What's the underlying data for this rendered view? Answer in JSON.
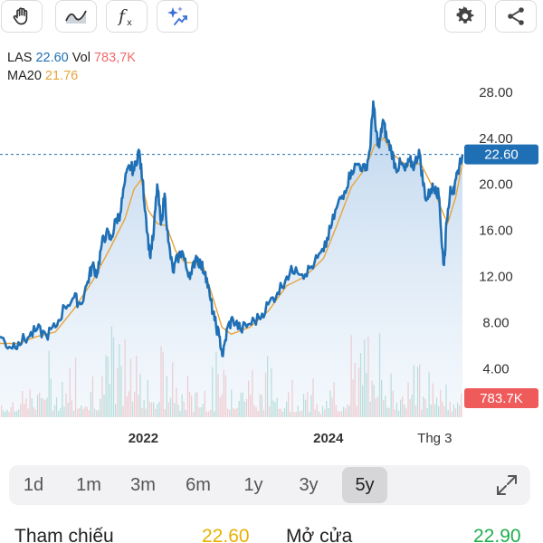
{
  "toolbar": {
    "left_icons": [
      "hand-icon",
      "area-chart-icon",
      "function-icon",
      "ai-sparkle-icon"
    ],
    "right_icons": [
      "gear-icon",
      "share-icon"
    ]
  },
  "legend": {
    "symbol": "LAS",
    "price": "22.60",
    "vol_label": "Vol",
    "vol_value": "783,7K",
    "ma_label": "MA20",
    "ma_value": "21.76",
    "colors": {
      "price": "#1f6fb5",
      "vol": "#ef6b6b",
      "ma": "#e8a43a"
    }
  },
  "chart_data": {
    "type": "line",
    "y_ticks": [
      "28.00",
      "24.00",
      "20.00",
      "16.00",
      "12.00",
      "8.00",
      "4.00"
    ],
    "y_tick_values": [
      28,
      24,
      20,
      16,
      12,
      8,
      4
    ],
    "ylim": [
      -0.2,
      29.4
    ],
    "x_ticks": [
      "2022",
      "2024",
      "Thg 3"
    ],
    "x_tick_positions": [
      0.31,
      0.71,
      0.94
    ],
    "last_price_label": "22.60",
    "last_price": 22.6,
    "volume_label": "783.7K",
    "price_series": [
      {
        "t": 0.0,
        "v": 6.8
      },
      {
        "t": 0.02,
        "v": 5.9
      },
      {
        "t": 0.04,
        "v": 6.3
      },
      {
        "t": 0.06,
        "v": 6.7
      },
      {
        "t": 0.08,
        "v": 7.4
      },
      {
        "t": 0.1,
        "v": 6.9
      },
      {
        "t": 0.12,
        "v": 7.6
      },
      {
        "t": 0.14,
        "v": 9.4
      },
      {
        "t": 0.16,
        "v": 10.2
      },
      {
        "t": 0.175,
        "v": 9.6
      },
      {
        "t": 0.19,
        "v": 11.6
      },
      {
        "t": 0.2,
        "v": 13.0
      },
      {
        "t": 0.21,
        "v": 12.2
      },
      {
        "t": 0.22,
        "v": 14.8
      },
      {
        "t": 0.23,
        "v": 15.8
      },
      {
        "t": 0.24,
        "v": 15.2
      },
      {
        "t": 0.25,
        "v": 16.8
      },
      {
        "t": 0.26,
        "v": 17.5
      },
      {
        "t": 0.27,
        "v": 20.2
      },
      {
        "t": 0.28,
        "v": 21.6
      },
      {
        "t": 0.29,
        "v": 21.2
      },
      {
        "t": 0.3,
        "v": 23.0
      },
      {
        "t": 0.308,
        "v": 20.4
      },
      {
        "t": 0.316,
        "v": 17.0
      },
      {
        "t": 0.324,
        "v": 13.8
      },
      {
        "t": 0.332,
        "v": 15.6
      },
      {
        "t": 0.34,
        "v": 20.0
      },
      {
        "t": 0.348,
        "v": 16.5
      },
      {
        "t": 0.356,
        "v": 19.2
      },
      {
        "t": 0.364,
        "v": 15.0
      },
      {
        "t": 0.374,
        "v": 12.4
      },
      {
        "t": 0.384,
        "v": 13.6
      },
      {
        "t": 0.394,
        "v": 14.2
      },
      {
        "t": 0.404,
        "v": 12.6
      },
      {
        "t": 0.414,
        "v": 12.2
      },
      {
        "t": 0.424,
        "v": 13.8
      },
      {
        "t": 0.434,
        "v": 13.0
      },
      {
        "t": 0.444,
        "v": 12.4
      },
      {
        "t": 0.454,
        "v": 10.2
      },
      {
        "t": 0.464,
        "v": 8.2
      },
      {
        "t": 0.474,
        "v": 6.8
      },
      {
        "t": 0.482,
        "v": 5.1
      },
      {
        "t": 0.492,
        "v": 7.6
      },
      {
        "t": 0.504,
        "v": 8.3
      },
      {
        "t": 0.52,
        "v": 7.4
      },
      {
        "t": 0.54,
        "v": 7.9
      },
      {
        "t": 0.56,
        "v": 8.4
      },
      {
        "t": 0.58,
        "v": 9.6
      },
      {
        "t": 0.6,
        "v": 10.6
      },
      {
        "t": 0.62,
        "v": 12.0
      },
      {
        "t": 0.64,
        "v": 12.8
      },
      {
        "t": 0.66,
        "v": 12.2
      },
      {
        "t": 0.68,
        "v": 13.2
      },
      {
        "t": 0.7,
        "v": 14.2
      },
      {
        "t": 0.715,
        "v": 16.2
      },
      {
        "t": 0.73,
        "v": 18.2
      },
      {
        "t": 0.745,
        "v": 19.4
      },
      {
        "t": 0.76,
        "v": 21.2
      },
      {
        "t": 0.775,
        "v": 21.8
      },
      {
        "t": 0.79,
        "v": 21.2
      },
      {
        "t": 0.8,
        "v": 23.0
      },
      {
        "t": 0.807,
        "v": 27.2
      },
      {
        "t": 0.813,
        "v": 24.6
      },
      {
        "t": 0.82,
        "v": 23.2
      },
      {
        "t": 0.828,
        "v": 25.6
      },
      {
        "t": 0.836,
        "v": 24.0
      },
      {
        "t": 0.846,
        "v": 23.0
      },
      {
        "t": 0.856,
        "v": 21.4
      },
      {
        "t": 0.866,
        "v": 21.8
      },
      {
        "t": 0.876,
        "v": 21.2
      },
      {
        "t": 0.886,
        "v": 22.0
      },
      {
        "t": 0.896,
        "v": 21.6
      },
      {
        "t": 0.906,
        "v": 23.0
      },
      {
        "t": 0.914,
        "v": 20.4
      },
      {
        "t": 0.922,
        "v": 18.6
      },
      {
        "t": 0.932,
        "v": 19.6
      },
      {
        "t": 0.942,
        "v": 19.8
      },
      {
        "t": 0.95,
        "v": 18.8
      },
      {
        "t": 0.956,
        "v": 14.5
      },
      {
        "t": 0.96,
        "v": 13.0
      },
      {
        "t": 0.966,
        "v": 16.8
      },
      {
        "t": 0.974,
        "v": 19.8
      },
      {
        "t": 0.982,
        "v": 19.2
      },
      {
        "t": 0.99,
        "v": 21.2
      },
      {
        "t": 1.0,
        "v": 22.6
      }
    ],
    "ma20_series": [
      {
        "t": 0.0,
        "v": 6.2
      },
      {
        "t": 0.04,
        "v": 6.2
      },
      {
        "t": 0.08,
        "v": 6.8
      },
      {
        "t": 0.12,
        "v": 7.2
      },
      {
        "t": 0.16,
        "v": 9.2
      },
      {
        "t": 0.2,
        "v": 11.6
      },
      {
        "t": 0.24,
        "v": 14.6
      },
      {
        "t": 0.27,
        "v": 17.0
      },
      {
        "t": 0.29,
        "v": 19.6
      },
      {
        "t": 0.305,
        "v": 20.4
      },
      {
        "t": 0.32,
        "v": 17.8
      },
      {
        "t": 0.34,
        "v": 16.6
      },
      {
        "t": 0.36,
        "v": 16.4
      },
      {
        "t": 0.38,
        "v": 14.2
      },
      {
        "t": 0.4,
        "v": 13.2
      },
      {
        "t": 0.42,
        "v": 13.2
      },
      {
        "t": 0.44,
        "v": 12.8
      },
      {
        "t": 0.46,
        "v": 10.2
      },
      {
        "t": 0.48,
        "v": 7.6
      },
      {
        "t": 0.5,
        "v": 7.0
      },
      {
        "t": 0.54,
        "v": 7.6
      },
      {
        "t": 0.58,
        "v": 9.0
      },
      {
        "t": 0.62,
        "v": 11.2
      },
      {
        "t": 0.66,
        "v": 12.0
      },
      {
        "t": 0.7,
        "v": 13.6
      },
      {
        "t": 0.73,
        "v": 16.6
      },
      {
        "t": 0.76,
        "v": 19.8
      },
      {
        "t": 0.79,
        "v": 21.4
      },
      {
        "t": 0.81,
        "v": 23.4
      },
      {
        "t": 0.83,
        "v": 24.0
      },
      {
        "t": 0.85,
        "v": 22.6
      },
      {
        "t": 0.88,
        "v": 21.6
      },
      {
        "t": 0.91,
        "v": 21.8
      },
      {
        "t": 0.935,
        "v": 19.8
      },
      {
        "t": 0.955,
        "v": 17.8
      },
      {
        "t": 0.968,
        "v": 16.6
      },
      {
        "t": 0.985,
        "v": 18.8
      },
      {
        "t": 1.0,
        "v": 21.8
      }
    ],
    "colors": {
      "price": "#1f6fb5",
      "ma": "#e8a43a",
      "vol_up": "#5fb8a6",
      "vol_down": "#ef8a8a",
      "badge_price": "#1f6fb5",
      "badge_vol": "#ef5b5b"
    }
  },
  "ranges": {
    "items": [
      "1d",
      "1m",
      "3m",
      "6m",
      "1y",
      "3y",
      "5y"
    ],
    "active": "5y"
  },
  "stats": {
    "ref_label": "Tham chiếu",
    "ref_value": "22.60",
    "open_label": "Mở cửa",
    "open_value": "22.90",
    "ref_color": "#e8b100",
    "open_color": "#1fae4c"
  }
}
